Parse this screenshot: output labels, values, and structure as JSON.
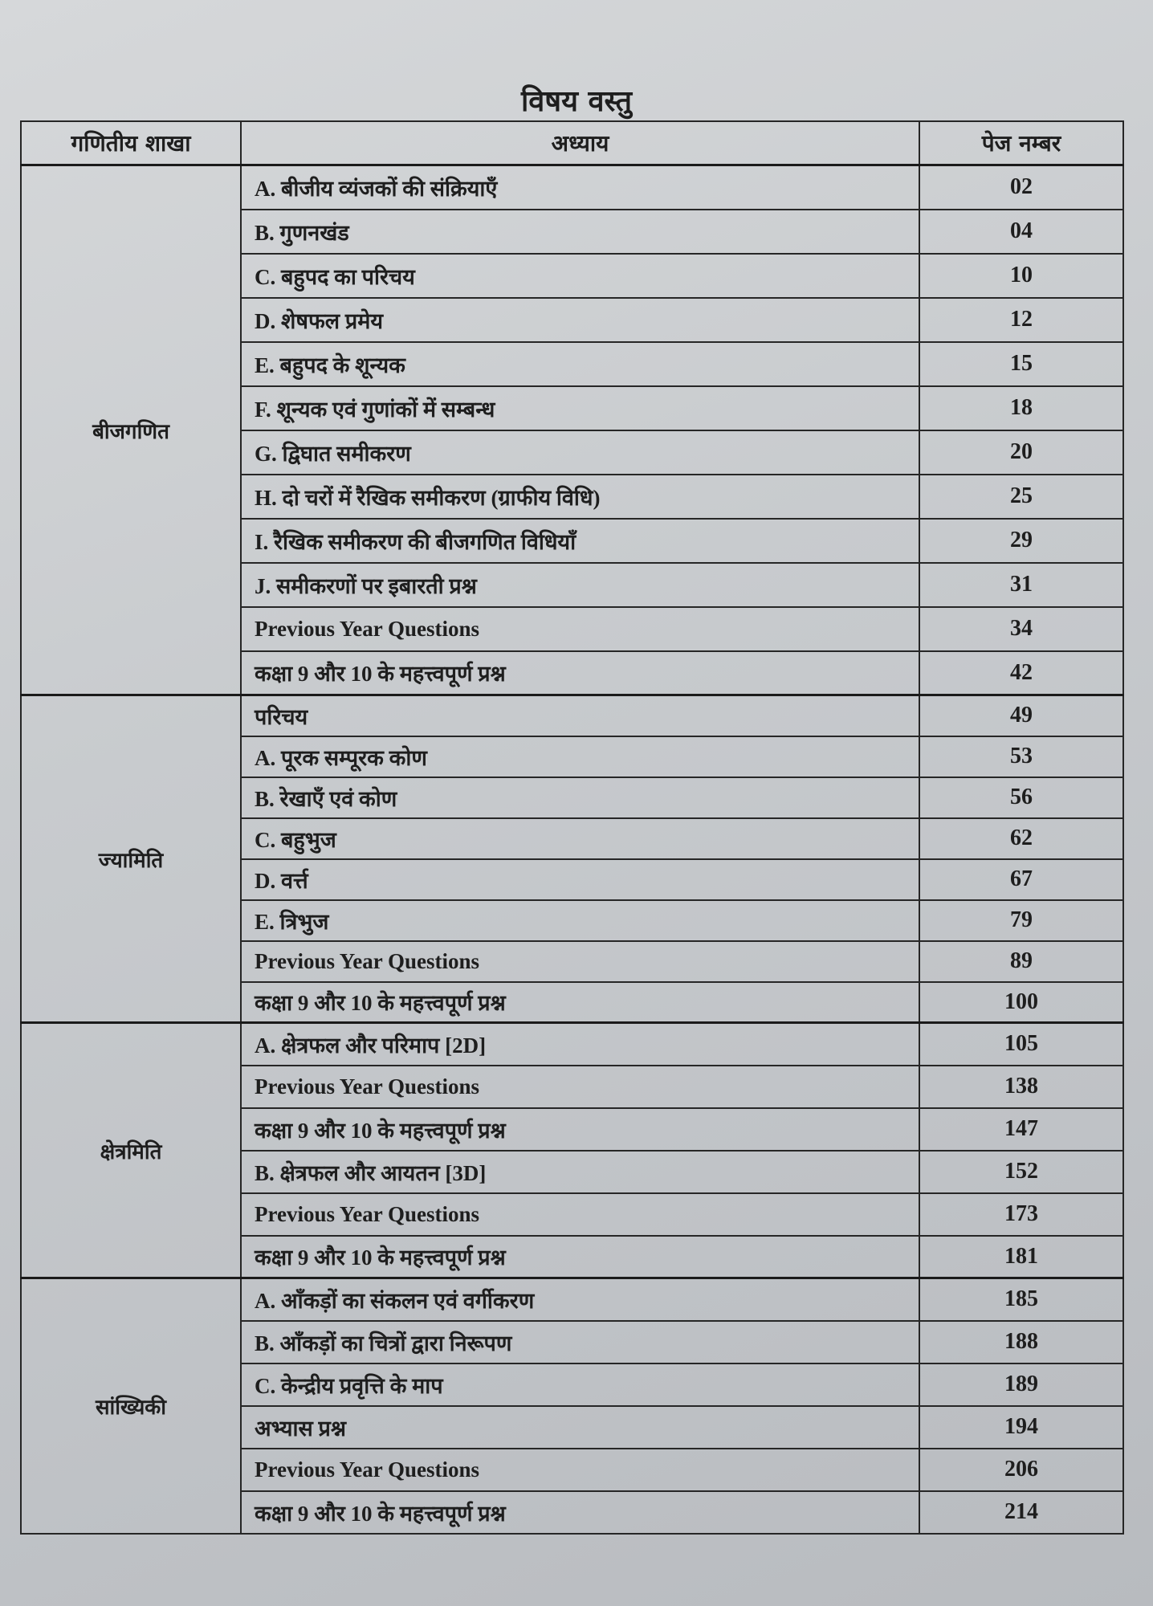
{
  "title": "विषय वस्तु",
  "table": {
    "headers": [
      "गणितीय शाखा",
      "अध्याय",
      "पेज नम्बर"
    ],
    "groups": [
      {
        "branch": "बीजगणित",
        "rows": [
          {
            "chapter": "A. बीजीय व्यंजकों की संक्रियाएँ",
            "page": "02"
          },
          {
            "chapter": "B. गुणनखंड",
            "page": "04"
          },
          {
            "chapter": "C. बहुपद का परिचय",
            "page": "10"
          },
          {
            "chapter": "D. शेषफल प्रमेय",
            "page": "12"
          },
          {
            "chapter": "E. बहुपद के शून्यक",
            "page": "15"
          },
          {
            "chapter": "F. शून्यक एवं गुणांकों में सम्बन्ध",
            "page": "18"
          },
          {
            "chapter": "G. द्विघात समीकरण",
            "page": "20"
          },
          {
            "chapter": "H. दो चरों में रैखिक समीकरण (ग्राफीय विधि)",
            "page": "25"
          },
          {
            "chapter": "I. रैखिक समीकरण की बीजगणित विधियाँ",
            "page": "29"
          },
          {
            "chapter": "J. समीकरणों पर इबारती प्रश्न",
            "page": "31"
          },
          {
            "chapter": "Previous Year Questions",
            "page": "34"
          },
          {
            "chapter": "कक्षा 9 और 10 के महत्त्वपूर्ण प्रश्न",
            "page": "42"
          }
        ]
      },
      {
        "branch": "ज्यामिति",
        "rows": [
          {
            "chapter": "परिचय",
            "page": "49"
          },
          {
            "chapter": "A. पूरक सम्पूरक कोण",
            "page": "53"
          },
          {
            "chapter": "B. रेखाएँ एवं कोण",
            "page": "56"
          },
          {
            "chapter": "C. बहुभुज",
            "page": "62"
          },
          {
            "chapter": "D. वर्त्त",
            "page": "67"
          },
          {
            "chapter": "E. त्रिभुज",
            "page": "79"
          },
          {
            "chapter": "Previous Year Questions",
            "page": "89"
          },
          {
            "chapter": "कक्षा 9 और 10 के महत्त्वपूर्ण प्रश्न",
            "page": "100"
          }
        ]
      },
      {
        "branch": "क्षेत्रमिति",
        "rows": [
          {
            "chapter": "A. क्षेत्रफल और परिमाप [2D]",
            "page": "105"
          },
          {
            "chapter": "Previous Year Questions",
            "page": "138"
          },
          {
            "chapter": "कक्षा 9 और 10 के महत्त्वपूर्ण प्रश्न",
            "page": "147"
          },
          {
            "chapter": "B. क्षेत्रफल और आयतन [3D]",
            "page": "152"
          },
          {
            "chapter": "Previous Year Questions",
            "page": "173"
          },
          {
            "chapter": "कक्षा 9 और 10 के महत्त्वपूर्ण प्रश्न",
            "page": "181"
          }
        ]
      },
      {
        "branch": "सांख्यिकी",
        "rows": [
          {
            "chapter": "A. आँकड़ों का संकलन एवं वर्गीकरण",
            "page": "185"
          },
          {
            "chapter": "B. आँकड़ों का चित्रों द्वारा निरूपण",
            "page": "188"
          },
          {
            "chapter": "C. केन्द्रीय प्रवृत्ति के माप",
            "page": "189"
          },
          {
            "chapter": "अभ्यास प्रश्न",
            "page": "194"
          },
          {
            "chapter": "Previous Year Questions",
            "page": "206"
          },
          {
            "chapter": "कक्षा 9 और 10 के महत्त्वपूर्ण प्रश्न",
            "page": "214"
          }
        ]
      }
    ]
  }
}
